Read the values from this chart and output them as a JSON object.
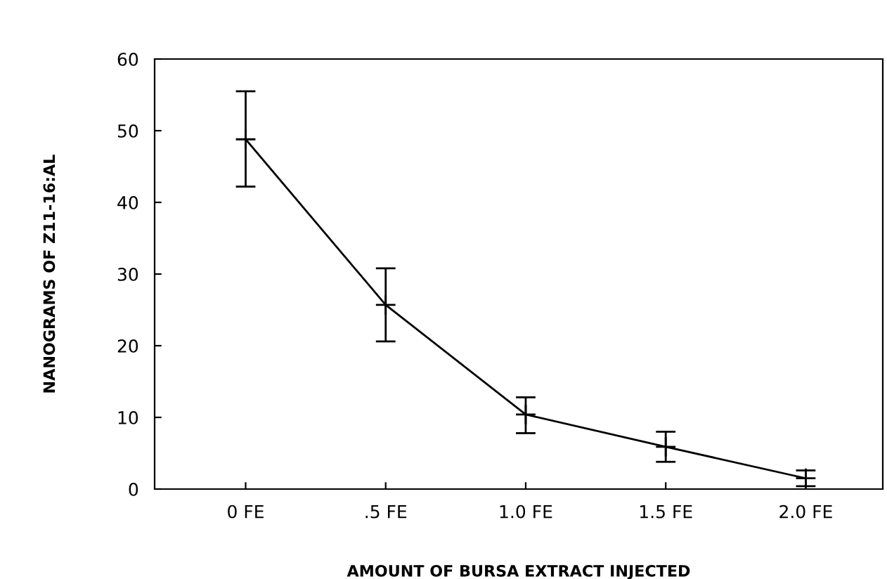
{
  "chart_data": {
    "type": "line",
    "xlabel": "AMOUNT OF BURSA EXTRACT INJECTED",
    "ylabel": "NANOGRAMS OF Z11-16:AL",
    "categories": [
      "0 FE",
      ".5 FE",
      "1.0 FE",
      "1.5 FE",
      "2.0 FE"
    ],
    "series": [
      {
        "color": "#000000",
        "values": [
          48.8,
          25.7,
          10.4,
          5.9,
          1.5
        ],
        "errors": [
          [
            42.2,
            55.5
          ],
          [
            20.6,
            30.8
          ],
          [
            7.8,
            12.8
          ],
          [
            3.8,
            8.0
          ],
          [
            0.4,
            2.6
          ]
        ]
      }
    ],
    "ylim": [
      0,
      60
    ],
    "yticks": [
      0,
      10,
      20,
      30,
      40,
      50,
      60
    ],
    "grid": false,
    "marker": "cross",
    "line_style": "solid"
  }
}
